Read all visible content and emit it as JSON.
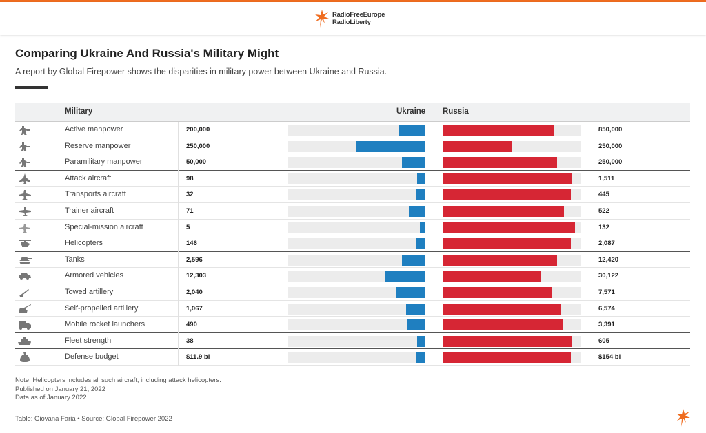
{
  "brand": {
    "line1": "RadioFreeEurope",
    "line2": "RadioLiberty",
    "accent": "#ef6c1f"
  },
  "title": "Comparing Ukraine And Russia's Military Might",
  "subtitle": "A report by Global Firepower shows the disparities in military power between Ukraine and Russia.",
  "columns": {
    "military": "Military",
    "ukraine": "Ukraine",
    "russia": "Russia"
  },
  "colors": {
    "ukraine": "#1f7fc0",
    "russia": "#d62634",
    "track": "#ececec"
  },
  "chart_data": {
    "type": "bar",
    "categories": [
      "Active manpower",
      "Reserve manpower",
      "Paramilitary manpower",
      "Attack aircraft",
      "Transports aircraft",
      "Trainer aircraft",
      "Special-mission aircraft",
      "Helicopters",
      "Tanks",
      "Armored vehicles",
      "Towed artillery",
      "Self-propelled artillery",
      "Mobile rocket launchers",
      "Fleet strength",
      "Defense budget"
    ],
    "series": [
      {
        "name": "Ukraine",
        "values": [
          200000,
          250000,
          50000,
          98,
          32,
          71,
          5,
          146,
          2596,
          12303,
          2040,
          1067,
          490,
          38,
          11.9
        ],
        "labels": [
          "200,000",
          "250,000",
          "50,000",
          "98",
          "32",
          "71",
          "5",
          "146",
          "2,596",
          "12,303",
          "2,040",
          "1,067",
          "490",
          "38",
          "$11.9 bi"
        ]
      },
      {
        "name": "Russia",
        "values": [
          850000,
          250000,
          250000,
          1511,
          445,
          522,
          132,
          2087,
          12420,
          30122,
          7571,
          6574,
          3391,
          605,
          154
        ],
        "labels": [
          "850,000",
          "250,000",
          "250,000",
          "1,511",
          "445",
          "522",
          "132",
          "2,087",
          "12,420",
          "30,122",
          "7,571",
          "6,574",
          "3,391",
          "605",
          "$154 bi"
        ]
      }
    ],
    "ukraine_fill": [
      0.19,
      0.5,
      0.17,
      0.06,
      0.07,
      0.12,
      0.04,
      0.07,
      0.17,
      0.29,
      0.21,
      0.14,
      0.13,
      0.06,
      0.07
    ],
    "russia_fill": [
      0.81,
      0.5,
      0.83,
      0.94,
      0.93,
      0.88,
      0.96,
      0.93,
      0.83,
      0.71,
      0.79,
      0.86,
      0.87,
      0.94,
      0.93
    ],
    "icons": [
      "soldier-icon",
      "soldier-icon",
      "soldier-icon",
      "fighter-jet-icon",
      "transport-plane-icon",
      "trainer-plane-icon",
      "special-plane-icon",
      "helicopter-icon",
      "tank-icon",
      "armored-vehicle-icon",
      "towed-artillery-icon",
      "self-propelled-artillery-icon",
      "rocket-launcher-icon",
      "ship-icon",
      "money-bag-icon"
    ],
    "group_ends": [
      2,
      7,
      12,
      13
    ]
  },
  "notes": {
    "line1": "Note: Helicopters includes all such aircraft, including attack helicopters.",
    "line2": "Published on January 21, 2022",
    "line3": "Data as of January 2022"
  },
  "source": "Table: Giovana Faria • Source: Global Firepower 2022"
}
